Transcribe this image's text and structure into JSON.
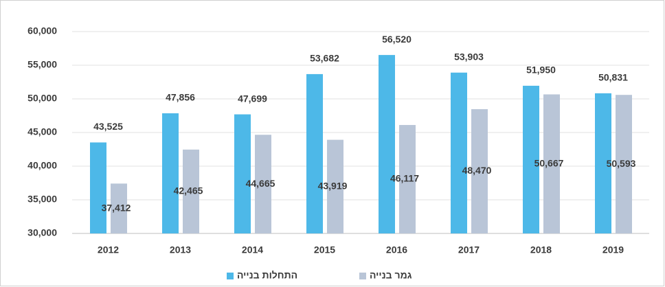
{
  "chart_data": {
    "type": "bar",
    "categories": [
      "2012",
      "2013",
      "2014",
      "2015",
      "2016",
      "2017",
      "2018",
      "2019"
    ],
    "series": [
      {
        "name": "התחלות בנייה",
        "color": "#4db8e8",
        "values": [
          43525,
          47856,
          47699,
          53682,
          56520,
          53903,
          51950,
          50831
        ],
        "value_labels": [
          "43,525",
          "47,856",
          "47,699",
          "53,682",
          "56,520",
          "53,903",
          "51,950",
          "50,831"
        ]
      },
      {
        "name": "גמר בנייה",
        "color": "#b9c5d7",
        "values": [
          37412,
          42465,
          44665,
          43919,
          46117,
          48470,
          50667,
          50593
        ],
        "value_labels": [
          "37,412",
          "42,465",
          "44,665",
          "43,919",
          "46,117",
          "48,470",
          "50,667",
          "50,593"
        ]
      }
    ],
    "ylim": [
      30000,
      60000
    ],
    "yticks": [
      {
        "value": 30000,
        "label": "30,000"
      },
      {
        "value": 35000,
        "label": "35,000"
      },
      {
        "value": 40000,
        "label": "40,000"
      },
      {
        "value": 45000,
        "label": "45,000"
      },
      {
        "value": 50000,
        "label": "50,000"
      },
      {
        "value": 55000,
        "label": "55,000"
      },
      {
        "value": 60000,
        "label": "60,000"
      }
    ],
    "grid": true,
    "legend": "bottom"
  }
}
